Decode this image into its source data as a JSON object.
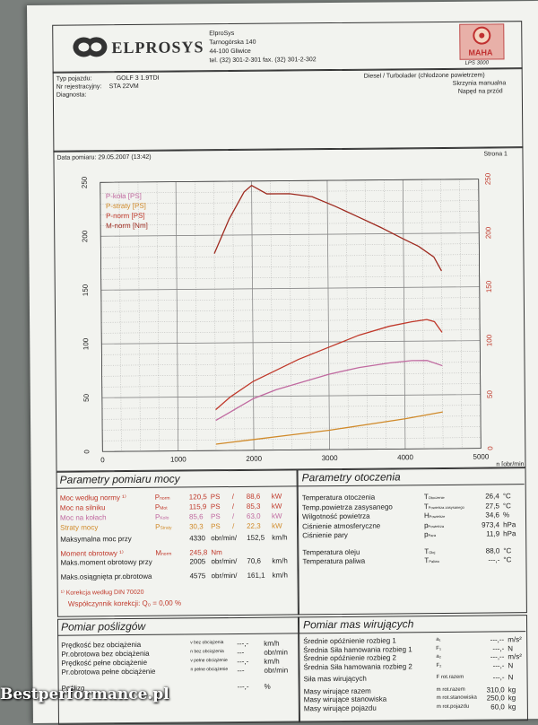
{
  "header": {
    "brand": "ELPROSYS",
    "company": "ElproSys",
    "address1": "Tarnogórska 140",
    "address2": "44-100 Gliwice",
    "phone": "tel. (32) 301-2-301   fax. (32) 301-2-302",
    "maha_logo": "MAHA",
    "maha_model": "LPS 3000"
  },
  "vehicle": {
    "type_label": "Typ pojazdu:",
    "type_value": "GOLF 3 1.9TDI",
    "reg_label": "Nr rejestracyjny:",
    "reg_value": "STA 22VM",
    "diag_label": "Diagnosta:",
    "engine": "Diesel / Turbolader (chłodzone powietrzem)",
    "gearbox": "Skrzynia manualna",
    "drive": "Napęd na przód"
  },
  "measurement": {
    "date_label": "Data pomiaru: 29.05.2007 (13:42)",
    "page": "Strona 1"
  },
  "chart_data": {
    "type": "line",
    "x_label": "n [obr/min]",
    "xlim": [
      0,
      5000
    ],
    "x_ticks": [
      "0",
      "1000",
      "2000",
      "3000",
      "4000",
      "5000"
    ],
    "ylim_left": [
      0,
      250
    ],
    "y_ticks_left": [
      "0",
      "50",
      "100",
      "150",
      "200",
      "250"
    ],
    "ylim_right": [
      0,
      250
    ],
    "y_ticks_right": [
      "0",
      "50",
      "100",
      "150",
      "200",
      "250"
    ],
    "legend_position": "top-left",
    "series": [
      {
        "name": "P-koła [PS]",
        "color": "#c06aa0",
        "x": [
          1500,
          1800,
          2000,
          2300,
          2600,
          3000,
          3400,
          3800,
          4100,
          4300,
          4500
        ],
        "values": [
          28,
          40,
          48,
          56,
          62,
          70,
          76,
          80,
          82,
          82,
          77
        ]
      },
      {
        "name": "P-straty [PS]",
        "color": "#d08a2a",
        "x": [
          1500,
          2000,
          2500,
          3000,
          3500,
          4000,
          4500
        ],
        "values": [
          6,
          10,
          14,
          18,
          23,
          28,
          34
        ]
      },
      {
        "name": "P-norm [PS]",
        "color": "#c0392b",
        "x": [
          1500,
          1700,
          2000,
          2300,
          2600,
          3000,
          3400,
          3800,
          4100,
          4300,
          4400,
          4500
        ],
        "values": [
          38,
          50,
          64,
          74,
          84,
          95,
          106,
          114,
          118,
          120,
          118,
          108
        ]
      },
      {
        "name": "M-norm [Nm]",
        "color": "#9e2a1f",
        "x": [
          1500,
          1700,
          1900,
          2000,
          2200,
          2500,
          2800,
          3100,
          3400,
          3700,
          4000,
          4200,
          4400,
          4500
        ],
        "values": [
          183,
          215,
          240,
          246,
          238,
          238,
          235,
          226,
          216,
          206,
          195,
          188,
          178,
          165
        ]
      }
    ]
  },
  "engine_params": {
    "title": "Parametry pomiaru mocy",
    "rows": [
      {
        "label": "Moc według normy ¹⁾",
        "sym": "P",
        "sub": "norm",
        "v1": "120,5",
        "u1": "PS",
        "v2": "88,6",
        "u2": "kW",
        "cls": "red"
      },
      {
        "label": "Moc na silniku",
        "sym": "P",
        "sub": "Mot",
        "v1": "115,9",
        "u1": "PS",
        "v2": "85,3",
        "u2": "kW",
        "cls": "red"
      },
      {
        "label": "Moc na kołach",
        "sym": "P",
        "sub": "Koło",
        "v1": "85,6",
        "u1": "PS",
        "v2": "63,0",
        "u2": "kW",
        "cls": "pink"
      },
      {
        "label": "Straty mocy",
        "sym": "P",
        "sub": "Straty",
        "v1": "30,3",
        "u1": "PS",
        "v2": "22,3",
        "u2": "kW",
        "cls": "orange"
      }
    ],
    "max_power_label": "Maksymalna moc przy",
    "max_power_rpm": "4330",
    "max_power_unit": "obr/min/",
    "max_power_kmh": "152,5",
    "max_power_kmh_unit": "km/h",
    "torque_label": "Moment obrotowy ¹⁾",
    "torque_sym": "M",
    "torque_sub": "norm",
    "torque_value": "245,8",
    "torque_unit": "Nm",
    "max_torque_label": "Maks.moment obrotowy przy",
    "max_torque_rpm": "2005",
    "max_torque_unit": "obr/min/",
    "max_torque_kmh": "70,6",
    "max_torque_kmh_unit": "km/h",
    "max_rpm_label": "Maks.osiągnięta pr.obrotowa",
    "max_rpm": "4575",
    "max_rpm_unit": "obr/min/",
    "max_rpm_kmh": "161,1",
    "max_rpm_kmh_unit": "km/h",
    "correction_label": "¹⁾ Korekcja według DIN 70020",
    "correction_factor": "Współczynnik korekcji: Q₀ = 0,00 %"
  },
  "ambient": {
    "title": "Parametry otoczenia",
    "rows": [
      {
        "label": "Temperatura otoczenia",
        "sym": "T",
        "sub": "Otoczenie",
        "val": "26,4",
        "unit": "°C"
      },
      {
        "label": "Temp.powietrza zasysanego",
        "sym": "T",
        "sub": "Powietrza zasysanego",
        "val": "27,5",
        "unit": "°C"
      },
      {
        "label": "Wilgotność powietrza",
        "sym": "H",
        "sub": "Powietrze",
        "val": "34,6",
        "unit": "%"
      },
      {
        "label": "Ciśnienie atmosferyczne",
        "sym": "p",
        "sub": "Powietrza",
        "val": "973,4",
        "unit": "hPa"
      },
      {
        "label": "Ciśnienie pary",
        "sym": "p",
        "sub": "Para",
        "val": "11,9",
        "unit": "hPa"
      },
      {
        "label": "Temperatura oleju",
        "sym": "T",
        "sub": "Olej",
        "val": "88,0",
        "unit": "°C"
      },
      {
        "label": "Temperatura paliwa",
        "sym": "T",
        "sub": "Paliwo",
        "val": "---,-",
        "unit": "°C"
      }
    ]
  },
  "slip": {
    "title": "Pomiar poślizgów",
    "rows": [
      {
        "label": "Prędkość bez obciążenia",
        "sub": "v bez obciążenia",
        "val": "---,-",
        "unit": "km/h"
      },
      {
        "label": "Pr.obrotowa bez obciążenia",
        "sub": "n bez obciążenia",
        "val": "---",
        "unit": "obr/min"
      },
      {
        "label": "Prędkość pełne obciążenie",
        "sub": "v pełne obciążenie",
        "val": "---,-",
        "unit": "km/h"
      },
      {
        "label": "Pr.obrotowa pełne obciążenie",
        "sub": "n pełne obciążenie",
        "val": "---",
        "unit": "obr/min"
      },
      {
        "label": "Poślizg",
        "sub": "",
        "val": "---,-",
        "unit": "%"
      }
    ]
  },
  "inertia": {
    "title": "Pomiar mas wirujących",
    "rows": [
      {
        "label": "Średnie opóźnienie rozbieg 1",
        "sym": "a₁",
        "val": "---,--",
        "unit": "m/s²"
      },
      {
        "label": "Średnia Siła hamowania rozbieg 1",
        "sym": "F₁",
        "val": "---,-",
        "unit": "N"
      },
      {
        "label": "Średnie opóźnienie rozbieg 2",
        "sym": "a₂",
        "val": "---,--",
        "unit": "m/s²"
      },
      {
        "label": "Średnia Siła hamowania rozbieg 2",
        "sym": "F₂",
        "val": "---,-",
        "unit": "N"
      },
      {
        "label": "Siła mas wirujących",
        "sym": "F rot.razem",
        "val": "---,-",
        "unit": "N"
      },
      {
        "label": "Masy wirujące razem",
        "sym": "m rot.razem",
        "val": "310,0",
        "unit": "kg"
      },
      {
        "label": "Masy wirujące stanowiska",
        "sym": "m rot.stanowiska",
        "val": "250,0",
        "unit": "kg"
      },
      {
        "label": "Masy wirujące pojazdu",
        "sym": "m rot.pojazdu",
        "val": "60,0",
        "unit": "kg"
      }
    ]
  },
  "watermark": "Bestperformance.pl"
}
